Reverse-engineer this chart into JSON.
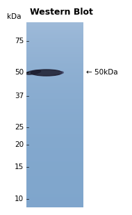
{
  "title": "Western Blot",
  "title_fontsize": 9,
  "title_fontweight": "bold",
  "kda_label": "kDa",
  "marker_labels": [
    "75",
    "50",
    "37",
    "25",
    "20",
    "15",
    "10"
  ],
  "marker_values": [
    75,
    50,
    37,
    25,
    20,
    15,
    10
  ],
  "band_label": "← 50kDa",
  "band_label_fontsize": 7.5,
  "band_kda": 50,
  "gel_color_top": "#7aafd4",
  "gel_color_bottom": "#5b9ecf",
  "background_color": "#ffffff",
  "band_color": "#1c1c2e",
  "label_fontsize": 7.5,
  "fig_width": 1.9,
  "fig_height": 3.09,
  "dpi": 100
}
